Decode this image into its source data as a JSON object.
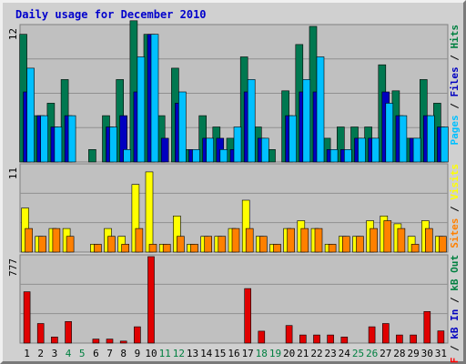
{
  "chart_data": {
    "type": "bar",
    "title": "Daily usage for December 2010",
    "categories": [
      "1",
      "2",
      "3",
      "4",
      "5",
      "6",
      "7",
      "8",
      "9",
      "10",
      "11",
      "12",
      "13",
      "14",
      "15",
      "16",
      "17",
      "18",
      "19",
      "20",
      "21",
      "22",
      "23",
      "24",
      "25",
      "26",
      "27",
      "28",
      "29",
      "30",
      "31"
    ],
    "weekend_days": [
      "4",
      "5",
      "11",
      "12",
      "18",
      "19",
      "25",
      "26"
    ],
    "panels": [
      {
        "name": "hits-files-pages",
        "max_label": "12",
        "ylim": [
          0,
          12
        ],
        "label_parts": [
          {
            "text": "Pages",
            "color": "#00c0ff"
          },
          {
            "text": " / ",
            "color": "#000000"
          },
          {
            "text": "Files",
            "color": "#0000c0"
          },
          {
            "text": " / ",
            "color": "#000000"
          },
          {
            "text": "Hits",
            "color": "#008040"
          }
        ],
        "series": [
          {
            "name": "Hits",
            "color": "#007850",
            "values": [
              11.3,
              4.1,
              5.2,
              7.3,
              0.0,
              1.1,
              4.1,
              7.3,
              12.5,
              11.3,
              4.1,
              8.3,
              1.1,
              4.1,
              3.1,
              2.1,
              9.3,
              3.1,
              1.1,
              6.3,
              10.4,
              12.0,
              2.1,
              3.1,
              3.1,
              3.1,
              8.6,
              6.3,
              2.1,
              7.3,
              5.2
            ]
          },
          {
            "name": "Files",
            "color": "#0000c0",
            "values": [
              6.2,
              4.1,
              3.1,
              4.1,
              0.0,
              0.0,
              3.1,
              4.1,
              6.2,
              11.3,
              2.1,
              5.2,
              1.1,
              2.1,
              2.1,
              1.1,
              6.2,
              2.1,
              0.0,
              4.1,
              6.2,
              6.2,
              1.1,
              1.1,
              2.1,
              2.1,
              6.2,
              4.1,
              2.1,
              4.1,
              3.1
            ]
          },
          {
            "name": "Pages",
            "color": "#00c0ff",
            "values": [
              8.3,
              4.1,
              3.1,
              4.1,
              0.0,
              0.0,
              3.1,
              1.1,
              9.3,
              11.3,
              0.0,
              6.2,
              1.1,
              2.1,
              1.1,
              3.1,
              7.3,
              2.1,
              0.0,
              4.1,
              7.3,
              9.3,
              1.1,
              1.1,
              2.1,
              2.1,
              5.2,
              4.1,
              2.1,
              4.1,
              3.1
            ]
          }
        ]
      },
      {
        "name": "visits-sites",
        "max_label": "11",
        "ylim": [
          0,
          11
        ],
        "label_parts": [
          {
            "text": "Sites",
            "color": "#ff8000"
          },
          {
            "text": " / ",
            "color": "#000000"
          },
          {
            "text": "Visits",
            "color": "#ffff00"
          }
        ],
        "series": [
          {
            "name": "Visits",
            "color": "#ffff00",
            "values": [
              5.6,
              2.0,
              3.0,
              3.0,
              0.0,
              1.0,
              3.0,
              2.0,
              8.6,
              10.2,
              1.0,
              4.6,
              1.0,
              2.0,
              2.0,
              3.0,
              6.6,
              2.0,
              1.0,
              3.0,
              4.0,
              3.0,
              1.0,
              2.0,
              2.0,
              4.0,
              4.6,
              3.6,
              2.0,
              4.0,
              2.0
            ]
          },
          {
            "name": "Sites",
            "color": "#ff8000",
            "values": [
              3.0,
              2.0,
              3.0,
              2.0,
              0.0,
              1.0,
              2.0,
              1.0,
              3.0,
              1.0,
              1.0,
              2.0,
              1.0,
              2.0,
              2.0,
              3.0,
              3.0,
              2.0,
              1.0,
              3.0,
              3.0,
              3.0,
              1.0,
              2.0,
              2.0,
              3.0,
              4.0,
              3.0,
              1.0,
              3.0,
              2.0
            ]
          }
        ]
      },
      {
        "name": "kbytes",
        "max_label": "777",
        "ylim": [
          0,
          777
        ],
        "label_parts": [
          {
            "text": "kB F",
            "color": "#ff0000"
          },
          {
            "text": " / ",
            "color": "#000000"
          },
          {
            "text": "kB In",
            "color": "#0000c0"
          },
          {
            "text": " / ",
            "color": "#000000"
          },
          {
            "text": "kB Out",
            "color": "#008040"
          }
        ],
        "series": [
          {
            "name": "kB F",
            "color": "#e00000",
            "values": [
              461,
              176,
              55,
              194,
              0,
              36,
              36,
              18,
              146,
              777,
              0,
              0,
              0,
              0,
              0,
              0,
              490,
              107,
              0,
              158,
              73,
              73,
              73,
              55,
              0,
              146,
              176,
              73,
              73,
              284,
              110
            ]
          }
        ]
      }
    ]
  },
  "colors": {
    "title": "#0000cc",
    "frame_bg": "#d0d0d0",
    "plot_bg": "#c0c0c0",
    "gridline": "#909090",
    "weekday_label": "#000000",
    "weekend_label": "#008040"
  }
}
